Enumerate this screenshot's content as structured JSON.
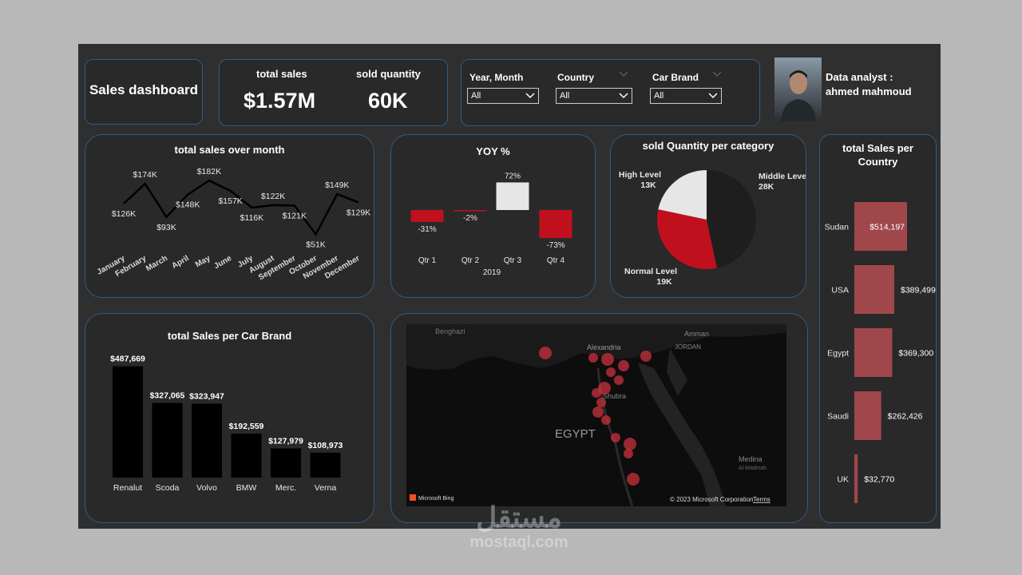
{
  "header": {
    "title": "Sales dashboard"
  },
  "kpis": {
    "total_sales_label": "total sales",
    "total_sales_value": "$1.57M",
    "sold_quantity_label": "sold quantity",
    "sold_quantity_value": "60K"
  },
  "slicers": [
    {
      "label": "Year, Month",
      "value": "All"
    },
    {
      "label": "Country",
      "value": "All"
    },
    {
      "label": "Car Brand",
      "value": "All"
    }
  ],
  "analyst": {
    "line1": "Data analyst :",
    "line2": "ahmed mahmoud"
  },
  "colors": {
    "accent_red": "#c0101e",
    "bar_rose": "#a0474c",
    "border_blue": "#2f5c8a",
    "light": "#e6e6e6"
  },
  "map": {
    "labels": [
      "Benghazi",
      "Alexandria",
      "JORDAN",
      "Amman",
      "Shubra",
      "EGYPT",
      "Medina",
      "Al Madinah"
    ],
    "attribution": "© 2023 Microsoft Corporation",
    "terms": "Terms",
    "bing": "Microsoft Bing"
  },
  "watermark": {
    "arabic": "مستقل",
    "latin": "mostaql.com"
  },
  "chart_data": [
    {
      "type": "line",
      "title": "total sales over month",
      "categories": [
        "January",
        "February",
        "March",
        "April",
        "May",
        "June",
        "July",
        "August",
        "September",
        "October",
        "November",
        "December"
      ],
      "values": [
        126,
        174,
        93,
        148,
        182,
        157,
        116,
        122,
        121,
        51,
        149,
        129
      ],
      "labels": [
        "$126K",
        "$174K",
        "$93K",
        "$148K",
        "$182K",
        "$157K",
        "$116K",
        "$122K",
        "$121K",
        "$51K",
        "$149K",
        "$129K"
      ],
      "unit": "K$"
    },
    {
      "type": "bar",
      "title": "YOY %",
      "categories": [
        "Qtr 1",
        "Qtr 2",
        "Qtr 3",
        "Qtr 4"
      ],
      "values": [
        -31,
        -2,
        72,
        -73
      ],
      "labels": [
        "-31%",
        "-2%",
        "72%",
        "-73%"
      ],
      "xlabel": "2019"
    },
    {
      "type": "pie",
      "title": "sold Quantity per category",
      "slices": [
        {
          "name": "Middle Level",
          "value": 28,
          "label": "28K",
          "color": "#1e1e1e"
        },
        {
          "name": "Normal Level",
          "value": 19,
          "label": "19K",
          "color": "#c0101e"
        },
        {
          "name": "High Level",
          "value": 13,
          "label": "13K",
          "color": "#e6e6e6"
        }
      ]
    },
    {
      "type": "bar",
      "title": "total Sales per Car Brand",
      "categories": [
        "Renalut",
        "Scoda",
        "Volvo",
        "BMW",
        "Merc.",
        "Verna"
      ],
      "values": [
        487669,
        327065,
        323947,
        192559,
        127979,
        108973
      ],
      "labels": [
        "$487,669",
        "$327,065",
        "$323,947",
        "$192,559",
        "$127,979",
        "$108,973"
      ]
    },
    {
      "type": "bar",
      "orientation": "horizontal",
      "title": "total Sales per Country",
      "categories": [
        "Sudan",
        "USA",
        "Egypt",
        "Saudi",
        "UK"
      ],
      "values": [
        514197,
        389499,
        369300,
        262426,
        32770
      ],
      "labels": [
        "$514,197",
        "$389,499",
        "$369,300",
        "$262,426",
        "$32,770"
      ]
    }
  ]
}
